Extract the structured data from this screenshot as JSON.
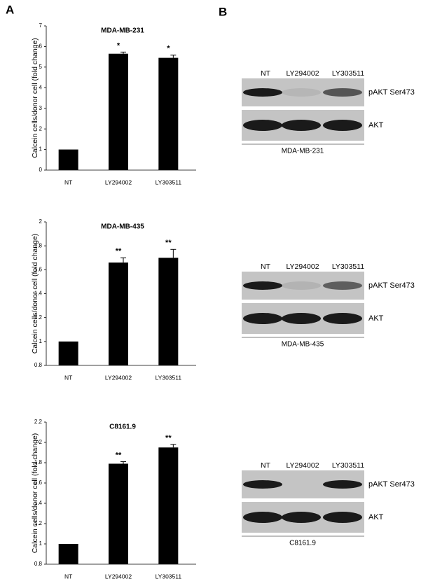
{
  "panels": [
    "A",
    "B"
  ],
  "chart_data": [
    {
      "type": "bar",
      "title": "MDA-MB-231",
      "y_label": "Calcein cells/donor cell (fold change)",
      "categories": [
        "NT",
        "LY294002",
        "LY303511"
      ],
      "values": [
        1,
        5.65,
        5.45
      ],
      "errors": [
        null,
        0.08,
        0.13
      ],
      "annotations": [
        null,
        "*",
        "*"
      ],
      "color": "#000000",
      "ylim": [
        0,
        7
      ],
      "yticks": [
        0,
        1,
        2,
        3,
        4,
        5,
        6,
        7
      ]
    },
    {
      "type": "bar",
      "title": "MDA-MB-435",
      "y_label": "Calcein cells/donor cell (fold change)",
      "categories": [
        "NT",
        "LY294002",
        "LY303511"
      ],
      "values": [
        1,
        1.66,
        1.7
      ],
      "errors": [
        null,
        0.04,
        0.07
      ],
      "annotations": [
        null,
        "**",
        "**"
      ],
      "color": "#000000",
      "ylim": [
        0.8,
        2
      ],
      "yticks": [
        0.8,
        1,
        1.2,
        1.4,
        1.6,
        1.8,
        2
      ]
    },
    {
      "type": "bar",
      "title": "C8161.9",
      "y_label": "Calcein cells/donor cell (fold change)",
      "categories": [
        "NT",
        "LY294002",
        "LY303511"
      ],
      "values": [
        1,
        1.79,
        1.95
      ],
      "errors": [
        null,
        0.02,
        0.03
      ],
      "annotations": [
        null,
        "**",
        "**"
      ],
      "color": "#000000",
      "ylim": [
        0.8,
        2.2
      ],
      "yticks": [
        0.8,
        1,
        1.2,
        1.4,
        1.6,
        1.8,
        2,
        2.2
      ]
    }
  ],
  "blots": [
    {
      "lanes": [
        "NT",
        "LY294002",
        "LY303511"
      ],
      "rows": [
        "pAKT Ser473",
        "AKT"
      ],
      "cell_line": "MDA-MB-231"
    },
    {
      "lanes": [
        "NT",
        "LY294002",
        "LY303511"
      ],
      "rows": [
        "pAKT Ser473",
        "AKT"
      ],
      "cell_line": "MDA-MB-435"
    },
    {
      "lanes": [
        "NT",
        "LY294002",
        "LY303511"
      ],
      "rows": [
        "pAKT Ser473",
        "AKT"
      ],
      "cell_line": "C8161.9"
    }
  ]
}
